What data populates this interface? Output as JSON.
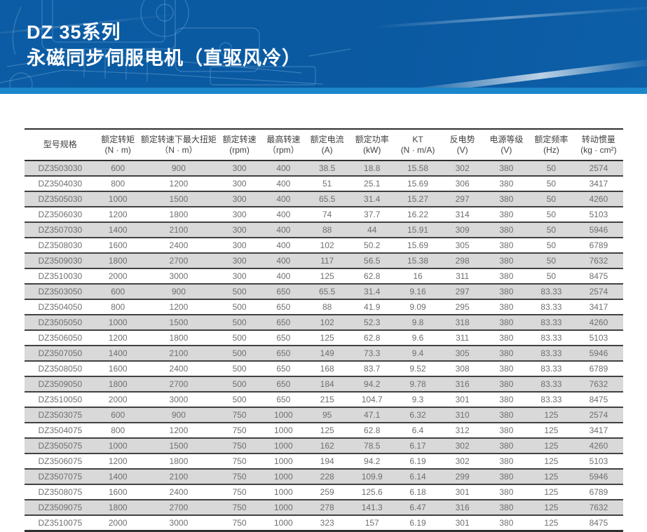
{
  "banner": {
    "title_line1": "DZ 35系列",
    "title_line2": "永磁同步伺服电机（直驱风冷）",
    "background_color": "#0a59a1",
    "stripe_color": "#1b86ca"
  },
  "table": {
    "stripe_row_color": "#d9d9d9",
    "columns": [
      {
        "label": "型号规格",
        "unit": ""
      },
      {
        "label": "额定转矩",
        "unit": "(N · m)"
      },
      {
        "label": "额定转速下最大扭矩",
        "unit": "（N · m）"
      },
      {
        "label": "额定转速",
        "unit": "(rpm)"
      },
      {
        "label": "最高转速",
        "unit": "（rpm）"
      },
      {
        "label": "额定电流",
        "unit": "(A)"
      },
      {
        "label": "额定功率",
        "unit": "(kW)"
      },
      {
        "label": "KT",
        "unit": "(N · m/A)"
      },
      {
        "label": "反电势",
        "unit": "(V)"
      },
      {
        "label": "电源等级",
        "unit": "(V)"
      },
      {
        "label": "额定频率",
        "unit": "(Hz)"
      },
      {
        "label": "转动惯量",
        "unit": "(kg · cm²)"
      }
    ],
    "rows": [
      [
        "DZ3503030",
        "600",
        "900",
        "300",
        "400",
        "38.5",
        "18.8",
        "15.58",
        "302",
        "380",
        "50",
        "2574"
      ],
      [
        "DZ3504030",
        "800",
        "1200",
        "300",
        "400",
        "51",
        "25.1",
        "15.69",
        "306",
        "380",
        "50",
        "3417"
      ],
      [
        "DZ3505030",
        "1000",
        "1500",
        "300",
        "400",
        "65.5",
        "31.4",
        "15.27",
        "297",
        "380",
        "50",
        "4260"
      ],
      [
        "DZ3506030",
        "1200",
        "1800",
        "300",
        "400",
        "74",
        "37.7",
        "16.22",
        "314",
        "380",
        "50",
        "5103"
      ],
      [
        "DZ3507030",
        "1400",
        "2100",
        "300",
        "400",
        "88",
        "44",
        "15.91",
        "309",
        "380",
        "50",
        "5946"
      ],
      [
        "DZ3508030",
        "1600",
        "2400",
        "300",
        "400",
        "102",
        "50.2",
        "15.69",
        "305",
        "380",
        "50",
        "6789"
      ],
      [
        "DZ3509030",
        "1800",
        "2700",
        "300",
        "400",
        "117",
        "56.5",
        "15.38",
        "298",
        "380",
        "50",
        "7632"
      ],
      [
        "DZ3510030",
        "2000",
        "3000",
        "300",
        "400",
        "125",
        "62.8",
        "16",
        "311",
        "380",
        "50",
        "8475"
      ],
      [
        "DZ3503050",
        "600",
        "900",
        "500",
        "650",
        "65.5",
        "31.4",
        "9.16",
        "297",
        "380",
        "83.33",
        "2574"
      ],
      [
        "DZ3504050",
        "800",
        "1200",
        "500",
        "650",
        "88",
        "41.9",
        "9.09",
        "295",
        "380",
        "83.33",
        "3417"
      ],
      [
        "DZ3505050",
        "1000",
        "1500",
        "500",
        "650",
        "102",
        "52.3",
        "9.8",
        "318",
        "380",
        "83.33",
        "4260"
      ],
      [
        "DZ3506050",
        "1200",
        "1800",
        "500",
        "650",
        "125",
        "62.8",
        "9.6",
        "311",
        "380",
        "83.33",
        "5103"
      ],
      [
        "DZ3507050",
        "1400",
        "2100",
        "500",
        "650",
        "149",
        "73.3",
        "9.4",
        "305",
        "380",
        "83.33",
        "5946"
      ],
      [
        "DZ3508050",
        "1600",
        "2400",
        "500",
        "650",
        "168",
        "83.7",
        "9.52",
        "308",
        "380",
        "83.33",
        "6789"
      ],
      [
        "DZ3509050",
        "1800",
        "2700",
        "500",
        "650",
        "184",
        "94.2",
        "9.78",
        "316",
        "380",
        "83.33",
        "7632"
      ],
      [
        "DZ3510050",
        "2000",
        "3000",
        "500",
        "650",
        "215",
        "104.7",
        "9.3",
        "301",
        "380",
        "83.33",
        "8475"
      ],
      [
        "DZ3503075",
        "600",
        "900",
        "750",
        "1000",
        "95",
        "47.1",
        "6.32",
        "310",
        "380",
        "125",
        "2574"
      ],
      [
        "DZ3504075",
        "800",
        "1200",
        "750",
        "1000",
        "125",
        "62.8",
        "6.4",
        "312",
        "380",
        "125",
        "3417"
      ],
      [
        "DZ3505075",
        "1000",
        "1500",
        "750",
        "1000",
        "162",
        "78.5",
        "6.17",
        "302",
        "380",
        "125",
        "4260"
      ],
      [
        "DZ3506075",
        "1200",
        "1800",
        "750",
        "1000",
        "194",
        "94.2",
        "6.19",
        "302",
        "380",
        "125",
        "5103"
      ],
      [
        "DZ3507075",
        "1400",
        "2100",
        "750",
        "1000",
        "228",
        "109.9",
        "6.14",
        "299",
        "380",
        "125",
        "5946"
      ],
      [
        "DZ3508075",
        "1600",
        "2400",
        "750",
        "1000",
        "259",
        "125.6",
        "6.18",
        "301",
        "380",
        "125",
        "6789"
      ],
      [
        "DZ3509075",
        "1800",
        "2700",
        "750",
        "1000",
        "278",
        "141.3",
        "6.47",
        "316",
        "380",
        "125",
        "7632"
      ],
      [
        "DZ3510075",
        "2000",
        "3000",
        "750",
        "1000",
        "323",
        "157",
        "6.19",
        "301",
        "380",
        "125",
        "8475"
      ]
    ],
    "column_widths_pct": [
      11.9,
      7.4,
      12.9,
      7.4,
      7.3,
      7.3,
      7.7,
      7.6,
      7.3,
      7.4,
      7.6,
      8.2
    ]
  }
}
